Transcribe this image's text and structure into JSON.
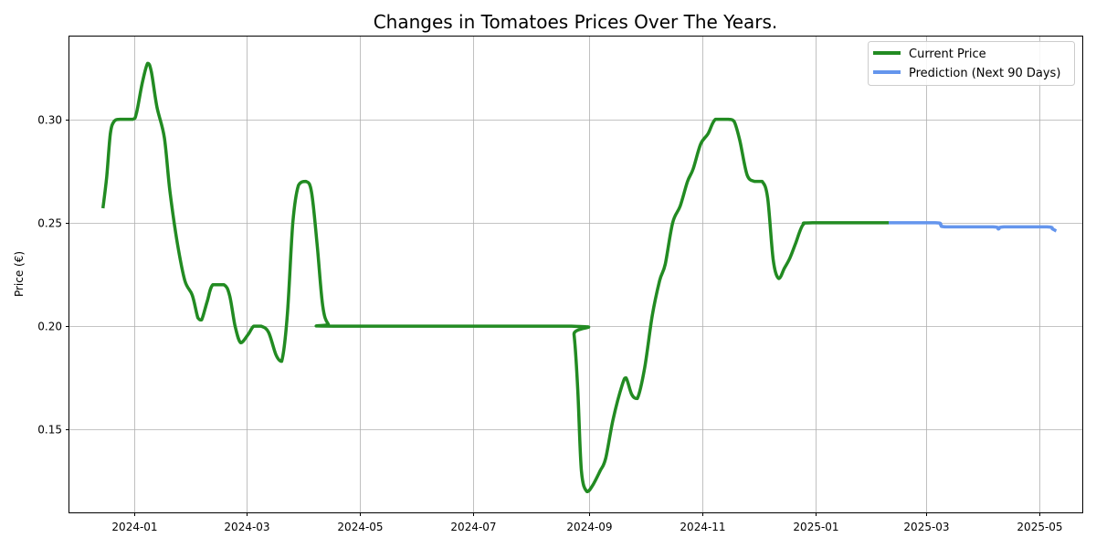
{
  "chart_data": {
    "type": "line",
    "title": "Changes in Tomatoes Prices Over The Years.",
    "xlabel": "",
    "ylabel": "Price (€)",
    "xlim": [
      "2023-11-27",
      "2025-05-24"
    ],
    "ylim": [
      0.11,
      0.34
    ],
    "x_ticks": [
      "2024-01",
      "2024-03",
      "2024-05",
      "2024-07",
      "2024-09",
      "2024-11",
      "2025-01",
      "2025-03",
      "2025-05"
    ],
    "y_ticks": [
      0.15,
      0.2,
      0.25,
      0.3
    ],
    "y_tick_labels": [
      "0.15",
      "0.20",
      "0.25",
      "0.30"
    ],
    "grid": true,
    "legend_position": "top-right",
    "series": [
      {
        "name": "Current Price",
        "color": "#228B22",
        "points": [
          [
            "2023-12-15",
            0.257
          ],
          [
            "2023-12-17",
            0.272
          ],
          [
            "2023-12-19",
            0.293
          ],
          [
            "2023-12-21",
            0.299
          ],
          [
            "2023-12-24",
            0.3
          ],
          [
            "2023-12-31",
            0.3
          ],
          [
            "2024-01-02",
            0.303
          ],
          [
            "2024-01-05",
            0.317
          ],
          [
            "2024-01-08",
            0.327
          ],
          [
            "2024-01-10",
            0.323
          ],
          [
            "2024-01-13",
            0.306
          ],
          [
            "2024-01-17",
            0.291
          ],
          [
            "2024-01-20",
            0.265
          ],
          [
            "2024-01-24",
            0.24
          ],
          [
            "2024-01-28",
            0.222
          ],
          [
            "2024-02-01",
            0.215
          ],
          [
            "2024-02-04",
            0.204
          ],
          [
            "2024-02-06",
            0.203
          ],
          [
            "2024-02-09",
            0.212
          ],
          [
            "2024-02-12",
            0.22
          ],
          [
            "2024-02-18",
            0.22
          ],
          [
            "2024-02-21",
            0.215
          ],
          [
            "2024-02-24",
            0.2
          ],
          [
            "2024-02-27",
            0.192
          ],
          [
            "2024-03-02",
            0.196
          ],
          [
            "2024-03-05",
            0.2
          ],
          [
            "2024-03-09",
            0.2
          ],
          [
            "2024-03-13",
            0.197
          ],
          [
            "2024-03-17",
            0.186
          ],
          [
            "2024-03-20",
            0.183
          ],
          [
            "2024-03-23",
            0.205
          ],
          [
            "2024-03-26",
            0.25
          ],
          [
            "2024-03-29",
            0.268
          ],
          [
            "2024-04-02",
            0.27
          ],
          [
            "2024-04-05",
            0.265
          ],
          [
            "2024-04-08",
            0.24
          ],
          [
            "2024-04-11",
            0.21
          ],
          [
            "2024-04-14",
            0.201
          ],
          [
            "2024-04-18",
            0.2
          ],
          [
            "2024-08-22",
            0.2
          ],
          [
            "2024-08-24",
            0.196
          ],
          [
            "2024-08-26",
            0.17
          ],
          [
            "2024-08-28",
            0.13
          ],
          [
            "2024-08-31",
            0.12
          ],
          [
            "2024-09-03",
            0.123
          ],
          [
            "2024-09-07",
            0.13
          ],
          [
            "2024-09-10",
            0.136
          ],
          [
            "2024-09-14",
            0.155
          ],
          [
            "2024-09-19",
            0.172
          ],
          [
            "2024-09-21",
            0.175
          ],
          [
            "2024-09-24",
            0.167
          ],
          [
            "2024-09-27",
            0.165
          ],
          [
            "2024-10-01",
            0.18
          ],
          [
            "2024-10-05",
            0.205
          ],
          [
            "2024-10-09",
            0.222
          ],
          [
            "2024-10-12",
            0.23
          ],
          [
            "2024-10-16",
            0.25
          ],
          [
            "2024-10-20",
            0.258
          ],
          [
            "2024-10-24",
            0.27
          ],
          [
            "2024-10-27",
            0.276
          ],
          [
            "2024-10-31",
            0.288
          ],
          [
            "2024-11-04",
            0.293
          ],
          [
            "2024-11-08",
            0.3
          ],
          [
            "2024-11-15",
            0.3
          ],
          [
            "2024-11-18",
            0.299
          ],
          [
            "2024-11-21",
            0.29
          ],
          [
            "2024-11-25",
            0.273
          ],
          [
            "2024-11-29",
            0.27
          ],
          [
            "2024-12-03",
            0.27
          ],
          [
            "2024-12-06",
            0.262
          ],
          [
            "2024-12-09",
            0.232
          ],
          [
            "2024-12-12",
            0.223
          ],
          [
            "2024-12-15",
            0.228
          ],
          [
            "2024-12-18",
            0.233
          ],
          [
            "2024-12-21",
            0.24
          ],
          [
            "2024-12-25",
            0.249
          ],
          [
            "2024-12-30",
            0.25
          ],
          [
            "2025-02-09",
            0.25
          ]
        ]
      },
      {
        "name": "Prediction (Next 90 Days)",
        "color": "#6495ED",
        "points": [
          [
            "2025-02-09",
            0.25
          ],
          [
            "2025-03-06",
            0.25
          ],
          [
            "2025-03-09",
            0.249
          ],
          [
            "2025-03-12",
            0.248
          ],
          [
            "2025-04-06",
            0.248
          ],
          [
            "2025-04-09",
            0.247
          ],
          [
            "2025-04-12",
            0.248
          ],
          [
            "2025-05-05",
            0.248
          ],
          [
            "2025-05-08",
            0.247
          ],
          [
            "2025-05-10",
            0.246
          ]
        ]
      }
    ]
  }
}
